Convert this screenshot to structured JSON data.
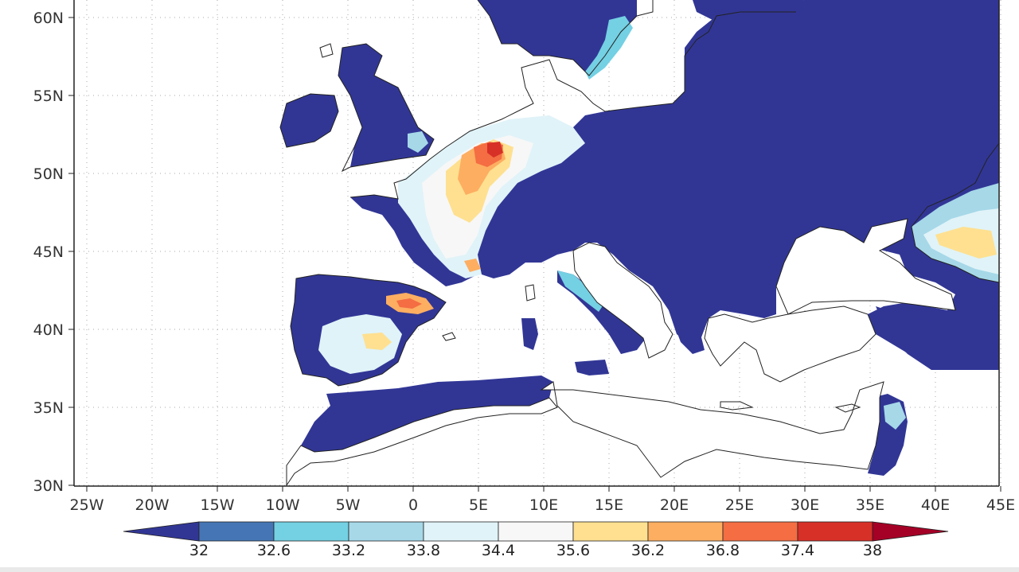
{
  "map": {
    "lon_ticks": [
      "25W",
      "20W",
      "15W",
      "10W",
      "5W",
      "0",
      "5E",
      "10E",
      "15E",
      "20E",
      "25E",
      "30E",
      "35E",
      "40E",
      "45E"
    ],
    "lat_ticks": [
      "60N",
      "55N",
      "50N",
      "45N",
      "40N",
      "35N",
      "30N"
    ],
    "extent": {
      "lon_min": -26,
      "lon_max": 45,
      "lat_min": 30,
      "lat_max": 61
    }
  },
  "colorbar": {
    "labels": [
      "32",
      "32.6",
      "33.2",
      "33.8",
      "34.4",
      "35.6",
      "36.2",
      "36.8",
      "37.4",
      "38"
    ],
    "colors": [
      "#313695",
      "#4575b4",
      "#74d0e3",
      "#a6d8e8",
      "#e0f3f8",
      "#f7f7f7",
      "#fee090",
      "#fdae61",
      "#f46d43",
      "#d73027",
      "#a50026"
    ]
  }
}
